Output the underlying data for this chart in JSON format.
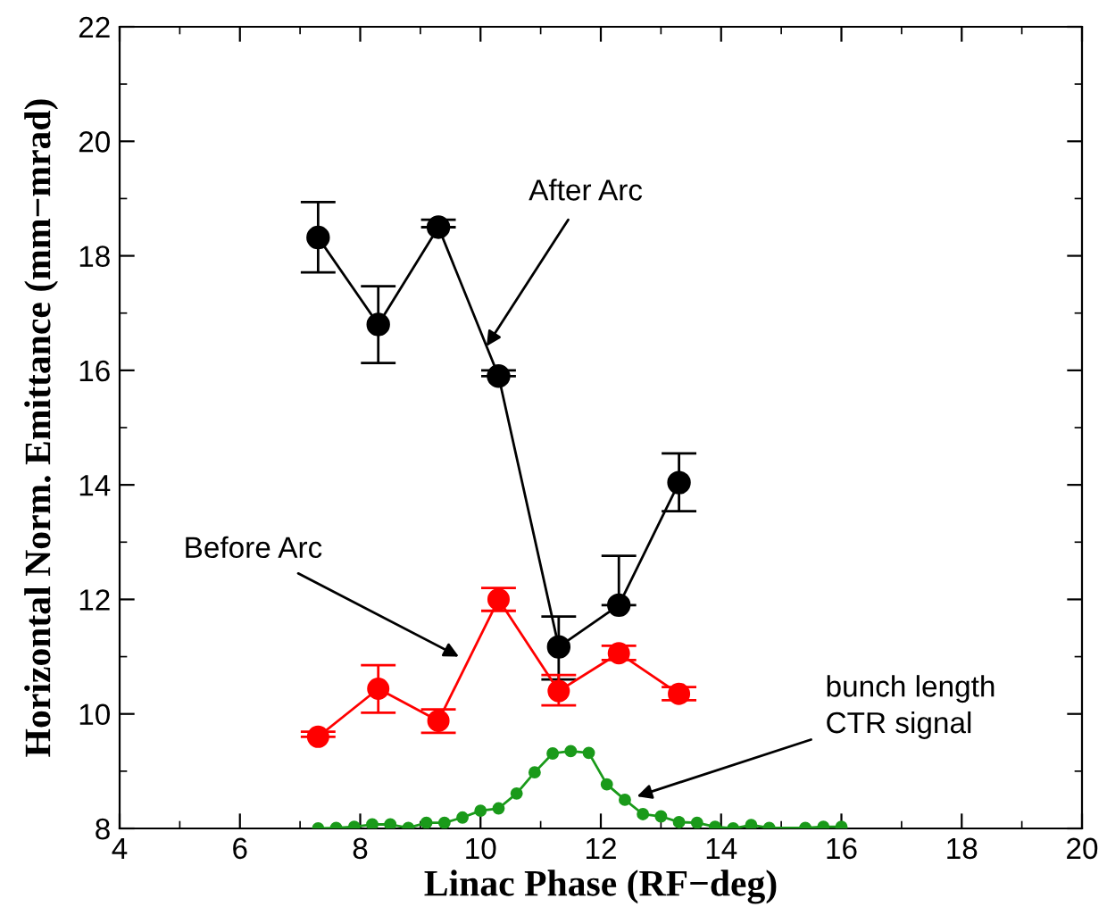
{
  "chart_data": {
    "type": "line",
    "xlabel": "Linac Phase (RF−deg)",
    "ylabel": "Horizontal Norm. Emittance (mm−mrad)",
    "xlim": [
      4,
      20
    ],
    "xticks": [
      4,
      6,
      8,
      10,
      12,
      14,
      16,
      18,
      20
    ],
    "ylim": [
      8,
      22
    ],
    "yticks": [
      8,
      10,
      12,
      14,
      16,
      18,
      20,
      22
    ],
    "grid": false,
    "legend": false,
    "marker": "circle",
    "line_style": "solid",
    "series": [
      {
        "color": "#000000",
        "x": [
          7.3,
          8.3,
          9.3,
          10.3,
          11.3,
          12.3,
          13.3
        ],
        "values": [
          18.32,
          16.8,
          18.5,
          15.9,
          11.17,
          11.9,
          14.04
        ],
        "errors": [
          [
            17.71,
            18.94
          ],
          [
            16.13,
            17.47
          ],
          [
            18.5,
            18.63
          ],
          [
            15.9,
            16.0
          ],
          [
            10.6,
            11.7
          ],
          [
            11.9,
            12.76
          ],
          [
            13.54,
            14.55
          ]
        ]
      },
      {
        "color": "#ff0000",
        "x": [
          7.3,
          8.3,
          9.3,
          10.3,
          11.3,
          12.3,
          13.3
        ],
        "values": [
          9.6,
          10.44,
          9.88,
          12.0,
          10.4,
          11.06,
          10.35
        ],
        "errors": [
          [
            9.6,
            9.69
          ],
          [
            10.02,
            10.85
          ],
          [
            9.67,
            10.08
          ],
          [
            11.8,
            12.2
          ],
          [
            10.15,
            10.68
          ],
          [
            10.94,
            11.19
          ],
          [
            10.24,
            10.47
          ]
        ]
      },
      {
        "color": "#1a9a1a",
        "x": [
          7.3,
          7.6,
          7.9,
          8.2,
          8.5,
          8.8,
          9.1,
          9.4,
          9.7,
          10.0,
          10.3,
          10.6,
          10.9,
          11.2,
          11.5,
          11.8,
          12.1,
          12.4,
          12.7,
          13.0,
          13.3,
          13.6,
          13.9,
          14.2,
          14.5,
          14.8,
          15.4,
          15.7,
          16.0
        ],
        "values": [
          8.0,
          8.01,
          8.03,
          8.07,
          8.07,
          8.01,
          8.1,
          8.1,
          8.19,
          8.31,
          8.35,
          8.61,
          8.98,
          9.31,
          9.35,
          9.32,
          8.77,
          8.5,
          8.25,
          8.21,
          8.11,
          8.1,
          8.03,
          8.0,
          8.06,
          8.01,
          8.01,
          8.03,
          8.03
        ]
      }
    ],
    "annotations": [
      {
        "text": "After Arc",
        "x": 10.1,
        "y": 16.42
      },
      {
        "text": "Before Arc",
        "x": 9.64,
        "y": 11.0
      },
      {
        "text": "bunch length\nCTR signal",
        "x": 12.6,
        "y": 8.56
      }
    ]
  }
}
